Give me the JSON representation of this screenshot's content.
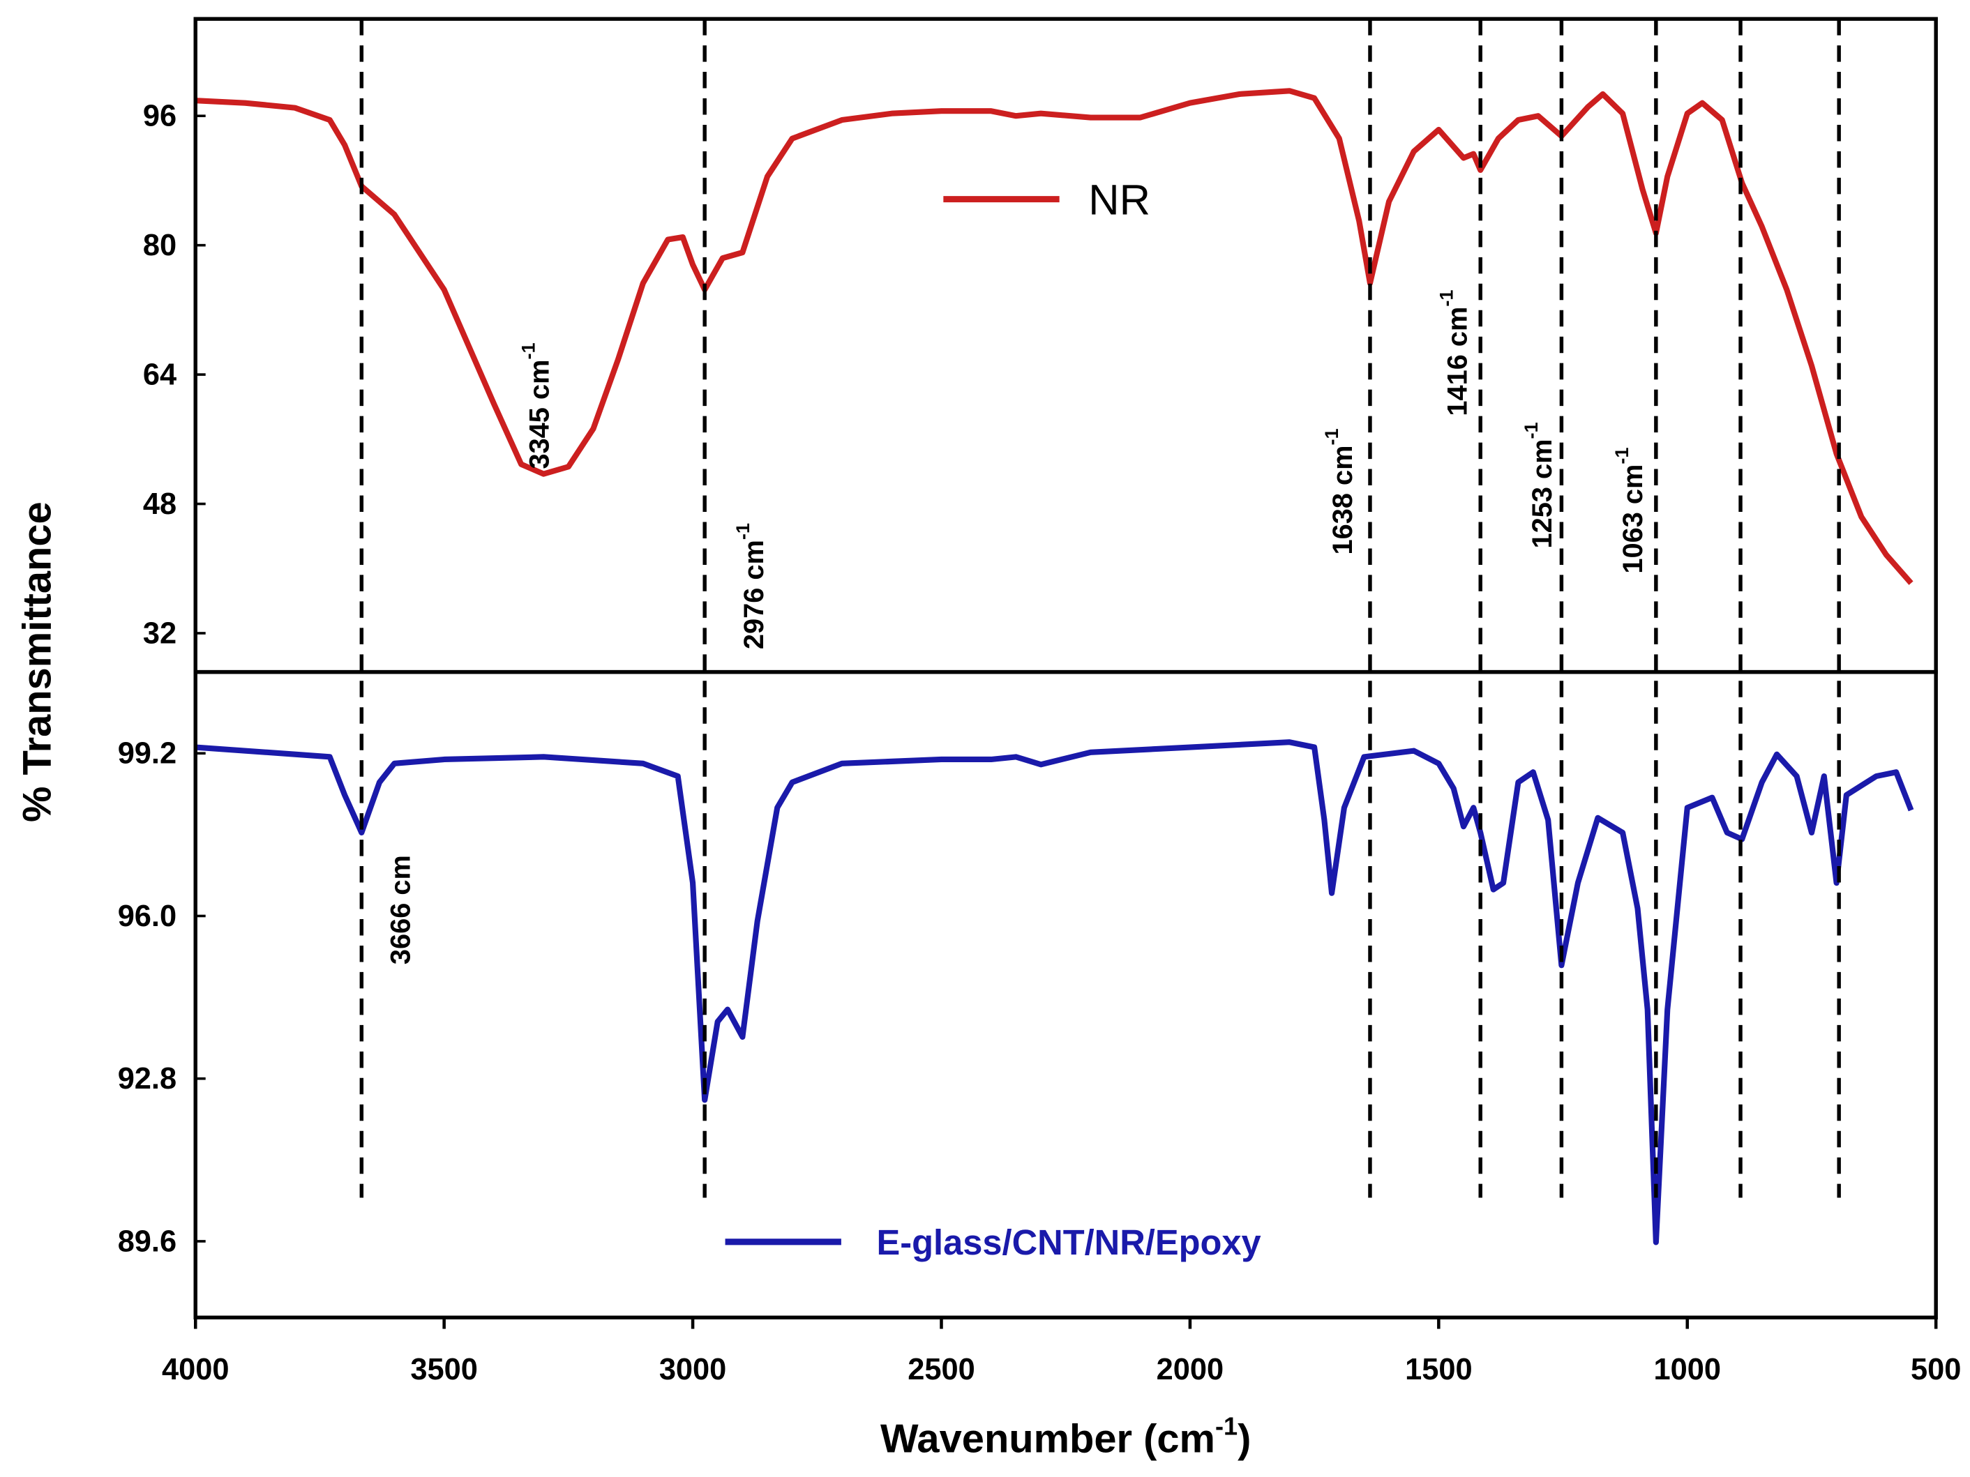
{
  "chart_data": {
    "type": "line",
    "xlabel": {
      "text": "Wavenumber (cm",
      "sup": "-1",
      "end": ")"
    },
    "ylabel": "% Transmittance",
    "xlim": [
      4000,
      500
    ],
    "xticks": [
      4000,
      3500,
      3000,
      2500,
      2000,
      1500,
      1000,
      500
    ],
    "reference_lines": [
      3666,
      2976,
      1638,
      1416,
      1253,
      1063,
      893,
      695
    ],
    "annotations": [
      {
        "text": "3345 cm",
        "sup": "-1"
      },
      {
        "text": "2976 cm",
        "sup": "-1"
      },
      {
        "text": "1638 cm",
        "sup": "-1"
      },
      {
        "text": "1416 cm",
        "sup": "-1"
      },
      {
        "text": "1253 cm",
        "sup": "-1"
      },
      {
        "text": "1063 cm",
        "sup": "-1"
      },
      {
        "text": "3666 cm"
      }
    ],
    "panels": [
      {
        "ylim": [
          27.2,
          108
        ],
        "yticks": [
          32,
          48,
          64,
          80,
          96
        ],
        "legend": "top-center",
        "series": [
          {
            "name": "NR",
            "color": "#cc1f1f",
            "x": [
              4000,
              3900,
              3800,
              3730,
              3700,
              3666,
              3600,
              3500,
              3400,
              3345,
              3300,
              3250,
              3200,
              3150,
              3100,
              3050,
              3020,
              3000,
              2976,
              2940,
              2900,
              2850,
              2800,
              2700,
              2600,
              2500,
              2400,
              2350,
              2300,
              2200,
              2100,
              2000,
              1900,
              1800,
              1750,
              1700,
              1660,
              1638,
              1600,
              1550,
              1500,
              1450,
              1430,
              1416,
              1380,
              1340,
              1300,
              1253,
              1200,
              1170,
              1130,
              1090,
              1063,
              1040,
              1000,
              970,
              930,
              890,
              850,
              800,
              750,
              700,
              650,
              600,
              550
            ],
            "values": [
              97.9,
              97.6,
              97.0,
              95.5,
              92.4,
              87.3,
              83.8,
              74.5,
              60.4,
              52.9,
              51.7,
              52.6,
              57.3,
              65.9,
              75.3,
              80.7,
              81.0,
              77.6,
              74.5,
              78.4,
              79.1,
              88.5,
              93.2,
              95.5,
              96.3,
              96.6,
              96.6,
              96.0,
              96.3,
              95.8,
              95.8,
              97.6,
              98.7,
              99.1,
              98.2,
              93.2,
              83.0,
              75.3,
              85.4,
              91.6,
              94.3,
              90.8,
              91.3,
              89.3,
              93.2,
              95.5,
              96.0,
              93.5,
              97.1,
              98.7,
              96.3,
              86.9,
              81.5,
              88.5,
              96.3,
              97.6,
              95.5,
              87.7,
              82.3,
              74.5,
              65.1,
              54.2,
              46.4,
              41.7,
              38.2
            ]
          }
        ]
      },
      {
        "ylim": [
          88.1,
          100.8
        ],
        "yticks": [
          {
            "value": 89.6,
            "label": "89.6"
          },
          92.8,
          {
            "value": 96,
            "label": "96.0"
          },
          99.2
        ],
        "legend": "bottom-center",
        "series": [
          {
            "name": "E-glass/CNT/NR/Epoxy",
            "color": "#1a1aaa",
            "x": [
              4000,
              3800,
              3730,
              3700,
              3666,
              3630,
              3600,
              3500,
              3300,
              3100,
              3030,
              3000,
              2976,
              2950,
              2930,
              2900,
              2870,
              2830,
              2800,
              2700,
              2500,
              2400,
              2350,
              2300,
              2200,
              2000,
              1800,
              1750,
              1730,
              1715,
              1690,
              1650,
              1550,
              1500,
              1470,
              1450,
              1430,
              1416,
              1390,
              1370,
              1340,
              1310,
              1280,
              1253,
              1220,
              1180,
              1130,
              1100,
              1080,
              1063,
              1040,
              1000,
              950,
              920,
              890,
              850,
              820,
              780,
              750,
              725,
              700,
              680,
              620,
              580,
              550
            ],
            "values": [
              99.32,
              99.18,
              99.13,
              98.38,
              97.64,
              98.63,
              99.0,
              99.08,
              99.13,
              99.0,
              98.75,
              96.65,
              92.38,
              93.92,
              94.16,
              93.62,
              95.9,
              98.13,
              98.63,
              99.0,
              99.08,
              99.08,
              99.13,
              98.98,
              99.22,
              99.32,
              99.42,
              99.32,
              97.89,
              96.45,
              98.13,
              99.13,
              99.25,
              99.0,
              98.51,
              97.76,
              98.13,
              97.64,
              96.52,
              96.65,
              98.63,
              98.83,
              97.89,
              95.03,
              96.65,
              97.93,
              97.64,
              96.15,
              94.16,
              89.58,
              94.16,
              98.13,
              98.33,
              97.64,
              97.51,
              98.63,
              99.18,
              98.75,
              97.64,
              98.75,
              96.65,
              98.38,
              98.75,
              98.83,
              98.08
            ]
          }
        ]
      }
    ]
  }
}
